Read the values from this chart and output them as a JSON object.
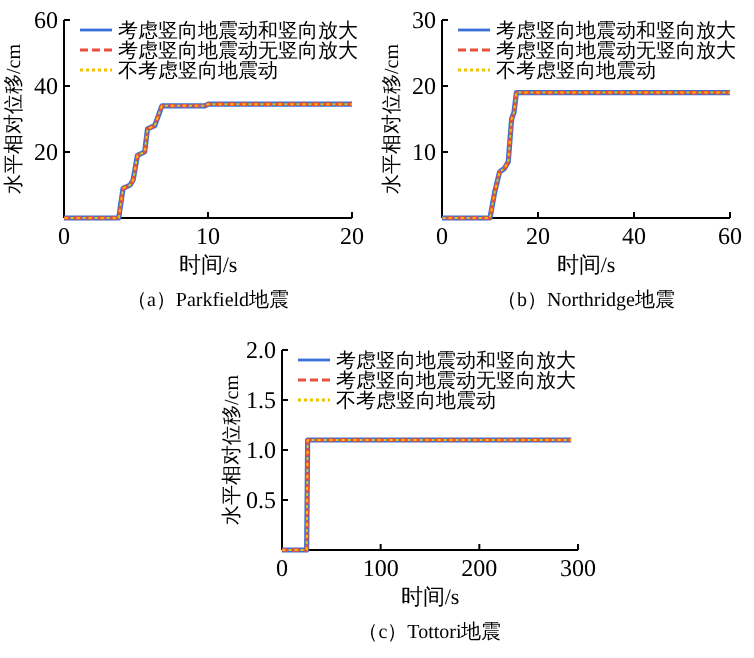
{
  "chart_data": [
    {
      "type": "line",
      "title": "（a）Parkfield地震",
      "xlabel": "时间/s",
      "ylabel": "水平相对位移/cm",
      "xlim": [
        0,
        20
      ],
      "xticks": [
        0,
        10,
        20
      ],
      "ylim": [
        0,
        60
      ],
      "yticks": [
        20,
        40,
        60
      ],
      "legend": "top right",
      "grid": false,
      "x": [
        0,
        3.8,
        4.1,
        4.6,
        4.8,
        5.1,
        5.6,
        5.8,
        6.3,
        6.8,
        9.8,
        10,
        20
      ],
      "series": [
        {
          "name": "考虑竖向地震动和竖向放大",
          "color": "#3a6fd8",
          "line_style": "solid",
          "values": [
            0,
            0,
            9,
            10,
            11.5,
            19,
            20,
            27,
            28,
            34,
            34,
            34.5,
            34.5
          ]
        },
        {
          "name": "考虑竖向地震动无竖向放大",
          "color": "#e8503a",
          "line_style": "dashed",
          "values": [
            0,
            0,
            9,
            10,
            11.5,
            19,
            20,
            27,
            28,
            34,
            34,
            34.5,
            34.5
          ]
        },
        {
          "name": "不考虑竖向地震动",
          "color": "#f2c200",
          "line_style": "dotted",
          "values": [
            0,
            0,
            9,
            10,
            11.5,
            19,
            20,
            27,
            28,
            34,
            34,
            34.5,
            34.5
          ]
        }
      ]
    },
    {
      "type": "line",
      "title": "（b）Northridge地震",
      "xlabel": "时间/s",
      "ylabel": "水平相对位移/cm",
      "xlim": [
        0,
        60
      ],
      "xticks": [
        0,
        20,
        40,
        60
      ],
      "ylim": [
        0,
        30
      ],
      "yticks": [
        10,
        20,
        30
      ],
      "legend": "top right",
      "grid": false,
      "x": [
        0,
        10,
        10.5,
        11,
        12,
        13,
        13.8,
        14.5,
        15,
        15.5,
        60
      ],
      "series": [
        {
          "name": "考虑竖向地震动和竖向放大",
          "color": "#3a6fd8",
          "line_style": "solid",
          "values": [
            0,
            0,
            2,
            4,
            7,
            7.5,
            8.5,
            15,
            16,
            19,
            19
          ]
        },
        {
          "name": "考虑竖向地震动无竖向放大",
          "color": "#e8503a",
          "line_style": "dashed",
          "values": [
            0,
            0,
            2,
            4,
            7,
            7.5,
            8.5,
            15,
            16,
            19,
            19
          ]
        },
        {
          "name": "不考虑竖向地震动",
          "color": "#f2c200",
          "line_style": "dotted",
          "values": [
            0,
            0,
            2,
            4,
            7,
            7.5,
            8.5,
            15,
            16,
            19,
            19
          ]
        }
      ]
    },
    {
      "type": "line",
      "title": "（c）Tottori地震",
      "xlabel": "时间/s",
      "ylabel": "水平相对位移/cm",
      "xlim": [
        0,
        300
      ],
      "xticks": [
        0,
        100,
        200,
        300
      ],
      "ylim": [
        0,
        2
      ],
      "yticks": [
        {
          "value": 0.5,
          "label": "0.5"
        },
        {
          "value": 1,
          "label": "1.0"
        },
        {
          "value": 1.5,
          "label": "1.5"
        },
        {
          "value": 2,
          "label": "2.0"
        }
      ],
      "legend": "top right",
      "grid": false,
      "x": [
        0,
        25,
        26,
        293
      ],
      "series": [
        {
          "name": "考虑竖向地震动和竖向放大",
          "color": "#3a6fd8",
          "line_style": "solid",
          "values": [
            0,
            0,
            1.1,
            1.1
          ]
        },
        {
          "name": "考虑竖向地震动无竖向放大",
          "color": "#e8503a",
          "line_style": "dashed",
          "values": [
            0,
            0,
            1.1,
            1.1
          ]
        },
        {
          "name": "不考虑竖向地震动",
          "color": "#f2c200",
          "line_style": "dotted",
          "values": [
            0,
            0,
            1.1,
            1.1
          ]
        }
      ]
    }
  ]
}
